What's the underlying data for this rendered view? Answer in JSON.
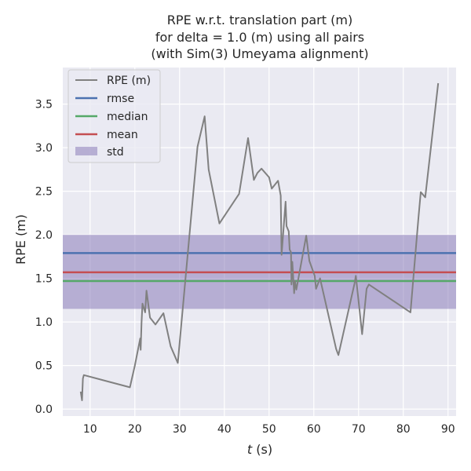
{
  "chart_data": {
    "type": "line",
    "title": [
      "RPE w.r.t. translation part (m)",
      "for delta = 1.0 (m) using all pairs",
      "(with Sim(3) Umeyama alignment)"
    ],
    "xlabel_var": "t",
    "xlabel_unit": " (s)",
    "ylabel": "RPE (m)",
    "xlim": [
      3.9,
      91.8
    ],
    "ylim": [
      -0.08,
      3.92
    ],
    "xticks": [
      10,
      20,
      30,
      40,
      50,
      60,
      70,
      80,
      90
    ],
    "yticks": [
      0.0,
      0.5,
      1.0,
      1.5,
      2.0,
      2.5,
      3.0,
      3.5
    ],
    "ytick_labels": [
      "0.0",
      "0.5",
      "1.0",
      "1.5",
      "2.0",
      "2.5",
      "3.0",
      "3.5"
    ],
    "grid": true,
    "legend_position": "upper left",
    "series": [
      {
        "name": "RPE (m)",
        "color": "#808080",
        "x": [
          7.9,
          8.2,
          8.4,
          8.6,
          18.9,
          20.0,
          21.2,
          21.3,
          21.5,
          21.7,
          22.3,
          22.6,
          23.4,
          24.6,
          26.4,
          28.0,
          29.6,
          34.0,
          35.6,
          36.5,
          38.9,
          43.3,
          45.3,
          46.6,
          47.4,
          48.3,
          50.0,
          50.6,
          52.0,
          52.6,
          52.8,
          53.7,
          53.9,
          54.4,
          54.6,
          54.9,
          55.0,
          55.2,
          55.6,
          55.8,
          56.1,
          58.3,
          59.0,
          60.2,
          60.5,
          61.4,
          65.0,
          65.5,
          69.1,
          69.4,
          70.8,
          71.8,
          72.3,
          81.6,
          83.4,
          83.9,
          84.9,
          87.8
        ],
        "y": [
          0.2,
          0.1,
          0.35,
          0.39,
          0.25,
          0.5,
          0.81,
          0.68,
          0.99,
          1.21,
          1.11,
          1.36,
          1.05,
          0.97,
          1.1,
          0.72,
          0.53,
          3.01,
          3.36,
          2.75,
          2.13,
          2.47,
          3.11,
          2.63,
          2.71,
          2.76,
          2.66,
          2.53,
          2.62,
          2.45,
          1.77,
          2.38,
          2.1,
          2.04,
          1.83,
          1.8,
          1.43,
          1.69,
          1.33,
          1.47,
          1.37,
          1.99,
          1.7,
          1.53,
          1.38,
          1.5,
          0.69,
          0.62,
          1.44,
          1.53,
          0.86,
          1.38,
          1.43,
          1.11,
          2.2,
          2.49,
          2.43,
          3.74
        ]
      },
      {
        "name": "rmse",
        "color": "#4c72b0",
        "y": 1.79
      },
      {
        "name": "median",
        "color": "#55a868",
        "y": 1.47
      },
      {
        "name": "mean",
        "color": "#c44e52",
        "y": 1.57
      }
    ],
    "band": {
      "name": "std",
      "color": "#8172b3",
      "y_low": 1.15,
      "y_high": 2.0
    }
  }
}
